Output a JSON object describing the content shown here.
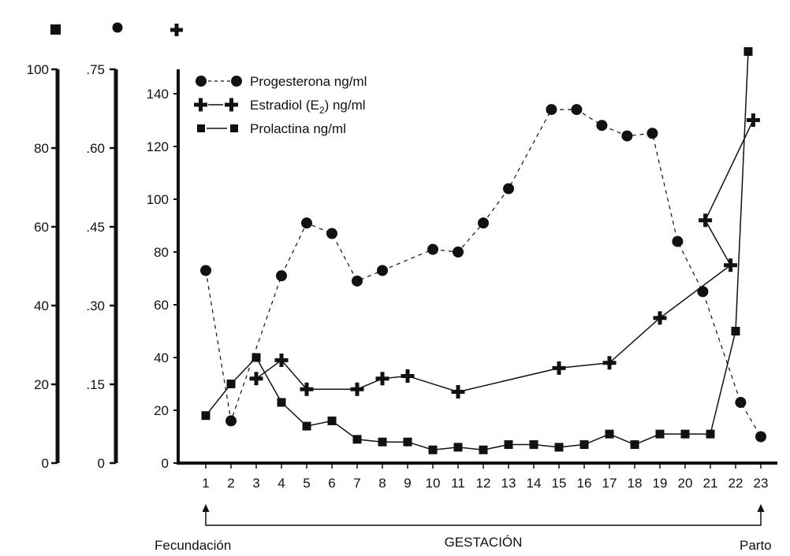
{
  "chart_data": {
    "type": "line",
    "x": [
      1,
      2,
      3,
      4,
      5,
      6,
      7,
      8,
      9,
      10,
      11,
      12,
      13,
      14,
      15,
      16,
      17,
      18,
      19,
      20,
      21,
      22,
      23
    ],
    "x_ticks": [
      "1",
      "2",
      "3",
      "4",
      "5",
      "6",
      "7",
      "8",
      "9",
      "10",
      "11",
      "12",
      "13",
      "14",
      "15",
      "16",
      "17",
      "18",
      "19",
      "20",
      "21",
      "22",
      "23"
    ],
    "ylim_main": [
      0,
      150
    ],
    "y_ticks_main": [
      "0",
      "20",
      "40",
      "60",
      "80",
      "100",
      "120",
      "140"
    ],
    "axis_square_ticks": [
      "0",
      "20",
      "40",
      "60",
      "80",
      "100"
    ],
    "axis_circle_ticks": [
      "0",
      ".15",
      ".30",
      ".45",
      ".60",
      ".75"
    ],
    "axis_symbols": [
      "square",
      "circle",
      "cross"
    ],
    "series": [
      {
        "name": "Progesterona ng/ml",
        "marker": "circle",
        "style": "dashed",
        "points": [
          [
            1,
            73
          ],
          [
            2,
            16
          ],
          [
            4,
            71
          ],
          [
            5,
            91
          ],
          [
            6,
            87
          ],
          [
            7,
            69
          ],
          [
            8,
            73
          ],
          [
            10,
            81
          ],
          [
            11,
            80
          ],
          [
            12,
            91
          ],
          [
            13,
            104
          ],
          [
            14.7,
            134
          ],
          [
            15.7,
            134
          ],
          [
            16.7,
            128
          ],
          [
            17.7,
            124
          ],
          [
            18.7,
            125
          ],
          [
            19.7,
            84
          ],
          [
            20.7,
            65
          ],
          [
            22.2,
            23
          ],
          [
            23,
            10
          ]
        ]
      },
      {
        "name": "Estradiol (E2) ng/ml",
        "marker": "cross",
        "style": "solid",
        "points": [
          [
            3,
            32
          ],
          [
            4,
            39
          ],
          [
            5,
            28
          ],
          [
            7,
            28
          ],
          [
            8,
            32
          ],
          [
            9,
            33
          ],
          [
            11,
            27
          ],
          [
            15,
            36
          ],
          [
            17,
            38
          ],
          [
            19,
            55
          ],
          [
            21.8,
            75
          ],
          [
            20.8,
            92
          ],
          [
            22.7,
            130
          ]
        ]
      },
      {
        "name": "Prolactina ng/ml",
        "marker": "square",
        "style": "solid",
        "points": [
          [
            1,
            18
          ],
          [
            2,
            30
          ],
          [
            3,
            40
          ],
          [
            4,
            23
          ],
          [
            5,
            14
          ],
          [
            6,
            16
          ],
          [
            7,
            9
          ],
          [
            8,
            8
          ],
          [
            9,
            8
          ],
          [
            10,
            5
          ],
          [
            11,
            6
          ],
          [
            12,
            5
          ],
          [
            13,
            7
          ],
          [
            14,
            7
          ],
          [
            15,
            6
          ],
          [
            16,
            7
          ],
          [
            17,
            11
          ],
          [
            18,
            7
          ],
          [
            19,
            11
          ],
          [
            20,
            11
          ],
          [
            21,
            11
          ],
          [
            22,
            50
          ],
          [
            22.5,
            156
          ]
        ]
      }
    ],
    "legend": [
      {
        "marker": "circle",
        "style": "dashed",
        "label": "Progesterona ng/ml"
      },
      {
        "marker": "cross",
        "style": "solid",
        "label_prefix": "Estradiol (E",
        "label_sub": "2",
        "label_suffix": ") ng/ml"
      },
      {
        "marker": "square",
        "style": "solid",
        "label": "Prolactina ng/ml"
      }
    ],
    "legend_position": "top-left",
    "xlabel": "GESTACIÓN",
    "x_start_label": "Fecundación",
    "x_end_label": "Parto",
    "grid": false
  }
}
